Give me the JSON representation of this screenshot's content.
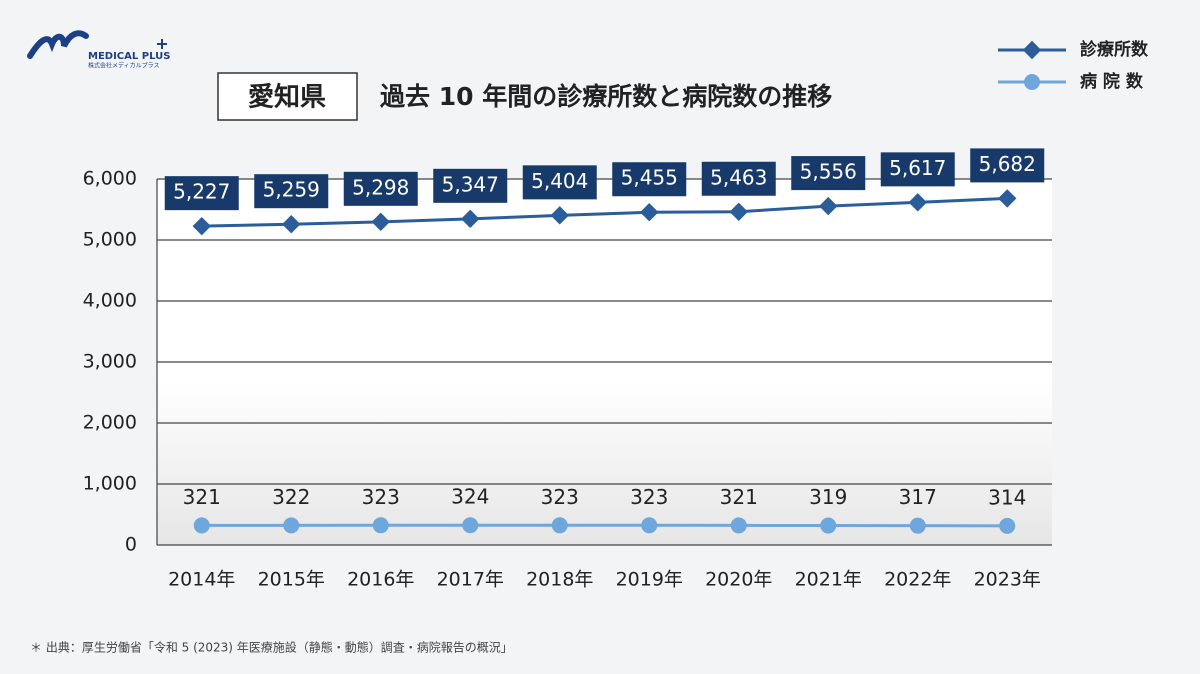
{
  "logo": {
    "name": "MEDICAL PLUS",
    "sub": "株式会社メディカルプラス"
  },
  "chart_data": {
    "type": "line",
    "title_box": "愛知県",
    "title": "過去 10 年間の診療所数と病院数の推移",
    "categories": [
      "2014年",
      "2015年",
      "2016年",
      "2017年",
      "2018年",
      "2019年",
      "2020年",
      "2021年",
      "2022年",
      "2023年"
    ],
    "series": [
      {
        "name": "診療所数",
        "color": "#2b5d9a",
        "marker": "diamond",
        "values": [
          5227,
          5259,
          5298,
          5347,
          5404,
          5455,
          5463,
          5556,
          5617,
          5682
        ],
        "value_labels": [
          "5,227",
          "5,259",
          "5,298",
          "5,347",
          "5,404",
          "5,455",
          "5,463",
          "5,556",
          "5,617",
          "5,682"
        ]
      },
      {
        "name": "病 院 数",
        "color": "#6fa6dc",
        "marker": "circle",
        "values": [
          321,
          322,
          323,
          324,
          323,
          323,
          321,
          319,
          317,
          314
        ]
      }
    ],
    "ylim": [
      0,
      6000
    ],
    "yticks": [
      0,
      {
        "value": 1000,
        "label": "1,000"
      },
      {
        "value": 2000,
        "label": "2,000"
      },
      {
        "value": 3000,
        "label": "3,000"
      },
      {
        "value": 4000,
        "label": "4,000"
      },
      {
        "value": 5000,
        "label": "5,000"
      },
      {
        "value": 6000,
        "label": "6,000"
      }
    ],
    "grid": true,
    "source": "＊ 出典：厚生労働省「令和 5 (2023) 年医療施設（静態・動態）調査・病院報告の概況」"
  }
}
